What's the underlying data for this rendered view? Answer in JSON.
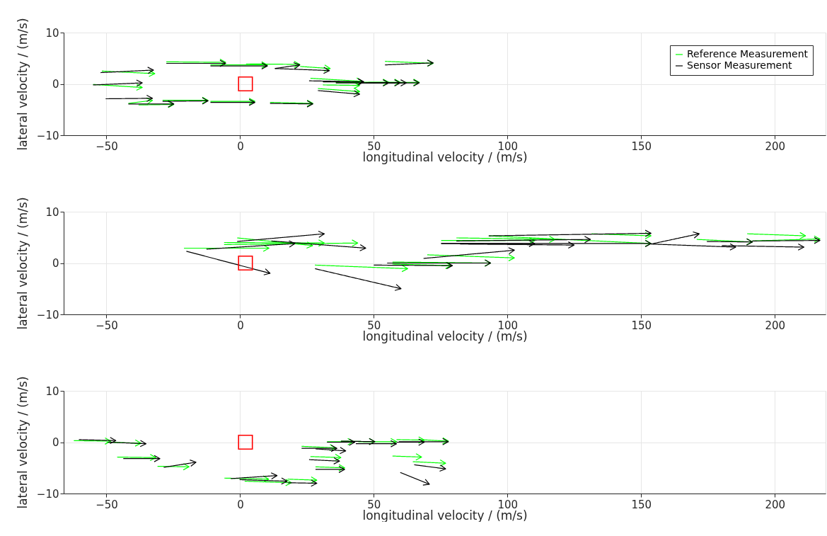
{
  "chart_data": [
    {
      "type": "line",
      "xlabel": "longitudinal velocity / (m/s)",
      "ylabel": "lateral velocity / (m/s)",
      "xlim": [
        -66,
        219
      ],
      "ylim": [
        -10,
        10
      ],
      "xticks": [
        -50,
        0,
        50,
        100,
        150,
        200
      ],
      "yticks": [
        -10,
        0,
        10
      ],
      "grid": true,
      "legend": "top right",
      "series": [
        {
          "name": "Reference Measurement",
          "color": "#00ff00",
          "x": [
            -27.6,
            -5.4,
            null,
            -11.1,
            10.2,
            null,
            2.2,
            22.3,
            null,
            22.5,
            33.7,
            null,
            -51.7,
            -31.9,
            null,
            -55,
            -36.6,
            null,
            -41.8,
            -32.8,
            null,
            -38,
            -24.8,
            null,
            -29,
            -12,
            null,
            -11.1,
            5.5,
            null,
            11.2,
            27.2,
            null,
            26.3,
            45.7,
            null,
            29.1,
            44.7,
            null,
            31,
            44.7,
            null,
            35.8,
            55.6,
            null,
            45.2,
            59.9,
            null,
            48,
            67,
            null,
            54.2,
            72.2
          ],
          "values": [
            4.3,
            4.2,
            null,
            3.7,
            3.7,
            null,
            3.9,
            3.8,
            null,
            3.4,
            3.0,
            null,
            2.5,
            2.0,
            null,
            -0.1,
            -0.7,
            null,
            -3.8,
            -3.2,
            null,
            -4.1,
            -4.0,
            null,
            -3.2,
            -3.2,
            null,
            -3.4,
            -3.4,
            null,
            -3.6,
            -3.8,
            null,
            1.1,
            0.5,
            null,
            -0.9,
            -1.5,
            null,
            -0.2,
            -0.3,
            null,
            0.3,
            0.3,
            null,
            0.3,
            0.3,
            null,
            0.3,
            0.3,
            null,
            4.4,
            4.0
          ]
        },
        {
          "name": "Sensor Measurement",
          "color": "#000000",
          "x": [
            -27.6,
            -5.4,
            null,
            -11.1,
            10.2,
            null,
            13,
            22.3,
            null,
            13,
            33.4,
            null,
            -52.2,
            -32.4,
            null,
            -55,
            -36.6,
            null,
            -50.3,
            -32.8,
            null,
            -41.8,
            -24.8,
            null,
            -29,
            -12,
            null,
            -11.1,
            5.5,
            null,
            11.2,
            27.2,
            null,
            25.8,
            46.2,
            null,
            31,
            46.2,
            null,
            29.1,
            44.7,
            null,
            35.8,
            55.6,
            null,
            45.2,
            59.9,
            null,
            47,
            62.2,
            null,
            48,
            67,
            null,
            54.2,
            72.2
          ],
          "values": [
            4.0,
            4.0,
            null,
            3.5,
            3.5,
            null,
            3.0,
            3.7,
            null,
            3.0,
            2.6,
            null,
            2.2,
            2.7,
            null,
            -0.2,
            0.2,
            null,
            -2.9,
            -2.8,
            null,
            -3.9,
            -3.9,
            null,
            -3.4,
            -3.3,
            null,
            -3.6,
            -3.6,
            null,
            -3.8,
            -3.9,
            null,
            0.6,
            0.4,
            null,
            0.4,
            0.4,
            null,
            -1.3,
            -2.0,
            null,
            0.2,
            0.2,
            null,
            0.2,
            0.2,
            null,
            0.2,
            0.2,
            null,
            0.2,
            0.2,
            null,
            3.7,
            4.1
          ]
        },
        {
          "type": "scatter",
          "marker": "square",
          "color": "#ff0000",
          "x": [
            2
          ],
          "values": [
            0
          ]
        }
      ]
    },
    {
      "type": "line",
      "xlabel": "longitudinal velocity / (m/s)",
      "ylabel": "lateral velocity / (m/s)",
      "xlim": [
        -66,
        219
      ],
      "ylim": [
        -10,
        10
      ],
      "xticks": [
        -50,
        0,
        50,
        100,
        150,
        200
      ],
      "yticks": [
        -10,
        0,
        10
      ],
      "grid": true,
      "series": [
        {
          "color": "#00ff00",
          "x": [
            -21,
            10.8,
            null,
            -6,
            31.5,
            null,
            -1.1,
            27.1,
            null,
            -6,
            44,
            null,
            28,
            62.7,
            null,
            57,
            79.0,
            null,
            57,
            93.7,
            null,
            70,
            102.6,
            null,
            75.2,
            110.2,
            null,
            80.9,
            117.8,
            null,
            93,
            153.7,
            null,
            131.5,
            153.7,
            null,
            170.8,
            191.6,
            null,
            189.7,
            211.5,
            null,
            191.6,
            216.9
          ],
          "values": [
            2.9,
            2.9,
            null,
            4.0,
            3.9,
            null,
            4.9,
            3.4,
            null,
            3.6,
            3.9,
            null,
            -0.4,
            -1.1,
            null,
            -0.2,
            -0.5,
            null,
            0.2,
            0,
            null,
            1.6,
            1.0,
            null,
            4.4,
            4.4,
            null,
            4.9,
            4.6,
            null,
            5.3,
            3.8,
            null,
            5.7,
            5.3,
            null,
            4.6,
            4.1,
            null,
            5.7,
            5.3,
            null,
            4.3,
            4.7
          ]
        },
        {
          "color": "#000000",
          "x": [
            -20.1,
            11.2,
            null,
            -12.6,
            20.5,
            null,
            -1.1,
            31.5,
            null,
            11.7,
            47,
            null,
            28,
            60.2,
            null,
            50,
            79.4,
            null,
            55,
            93.7,
            null,
            68.6,
            102.6,
            null,
            75.2,
            110.2,
            null,
            82.3,
            124.9,
            null,
            80.9,
            131,
            null,
            93,
            153.7,
            null,
            75.2,
            153.7,
            null,
            153.7,
            171.7,
            null,
            153.7,
            185.4,
            null,
            174.6,
            191.6,
            null,
            180.2,
            210.9,
            null,
            191.6,
            216.9
          ],
          "values": [
            2.3,
            -2.0,
            null,
            2.7,
            3.8,
            null,
            4.2,
            5.7,
            null,
            4.3,
            2.9,
            null,
            -1.1,
            -5.0,
            null,
            -0.4,
            -0.5,
            null,
            0,
            0,
            null,
            0.9,
            2.5,
            null,
            3.8,
            3.8,
            null,
            3.7,
            3.5,
            null,
            4.3,
            4.6,
            null,
            5.3,
            5.8,
            null,
            3.8,
            3.8,
            null,
            3.7,
            5.7,
            null,
            3.7,
            3.1,
            null,
            4.2,
            4.1,
            null,
            3.4,
            3.1,
            null,
            4.3,
            4.4
          ]
        },
        {
          "type": "scatter",
          "marker": "square",
          "color": "#ff0000",
          "x": [
            2
          ],
          "values": [
            0
          ]
        }
      ]
    },
    {
      "type": "line",
      "xlabel": "longitudinal velocity / (m/s)",
      "ylabel": "lateral velocity / (m/s)",
      "xlim": [
        -66,
        219
      ],
      "ylim": [
        -10,
        10
      ],
      "xticks": [
        -50,
        0,
        50,
        100,
        150,
        200
      ],
      "yticks": [
        -10,
        0,
        10
      ],
      "grid": true,
      "series": [
        {
          "color": "#00ff00",
          "x": [
            -62.2,
            -48.4,
            null,
            -49.9,
            -37.1,
            null,
            -46,
            -31.5,
            null,
            -30.9,
            -19.1,
            null,
            -5.9,
            10.7,
            null,
            1.7,
            19.2,
            null,
            17.8,
            28.7,
            null,
            23,
            35.7,
            null,
            26.3,
            37.7,
            null,
            28.2,
            39.1,
            null,
            32.5,
            42.4,
            null,
            37.7,
            50.4,
            null,
            44.2,
            58.5,
            null,
            58.5,
            68.9,
            null,
            67,
            77.9,
            null,
            57,
            67.9,
            null,
            64.6,
            76.9
          ],
          "values": [
            0.3,
            0.2,
            null,
            0,
            -0.2,
            null,
            -2.9,
            -3.0,
            null,
            -4.7,
            -4.8,
            null,
            -7.0,
            -7.2,
            null,
            -7.6,
            -7.9,
            null,
            -7.2,
            -7.4,
            null,
            -0.8,
            -1.1,
            null,
            -2.8,
            -3.0,
            null,
            -4.8,
            -5.0,
            null,
            0.1,
            0.1,
            null,
            0.2,
            0.1,
            null,
            0.1,
            0.1,
            null,
            0.5,
            0.4,
            null,
            0.5,
            0.2,
            null,
            -2.7,
            -2.9,
            null,
            -3.8,
            -4.1
          ]
        },
        {
          "color": "#000000",
          "x": [
            -60.3,
            -46.5,
            null,
            -49.4,
            -35.2,
            null,
            -43.7,
            -30,
            null,
            -28.6,
            -16.5,
            null,
            -3.5,
            13.8,
            null,
            -0.2,
            17.6,
            null,
            17.8,
            28.7,
            null,
            23,
            36.2,
            null,
            28.2,
            39.5,
            null,
            25.8,
            37.2,
            null,
            28.2,
            39.1,
            null,
            32.5,
            42.9,
            null,
            37.7,
            50.4,
            null,
            43.3,
            58.5,
            null,
            58.5,
            68.9,
            null,
            59.4,
            77.9,
            null,
            65.1,
            76.9,
            null,
            59.9,
            70.8
          ],
          "values": [
            0.5,
            0.3,
            null,
            0,
            -0.3,
            null,
            -3.2,
            -3.2,
            null,
            -4.9,
            -3.9,
            null,
            -7.1,
            -6.5,
            null,
            -7.3,
            -7.6,
            null,
            -7.9,
            -8.0,
            null,
            -1.2,
            -1.2,
            null,
            -1.3,
            -1.7,
            null,
            -3.4,
            -3.7,
            null,
            -5.3,
            -5.3,
            null,
            0,
            0,
            null,
            0.2,
            0.1,
            null,
            -0.3,
            -0.3,
            null,
            0,
            0,
            null,
            0.1,
            0.1,
            null,
            -4.4,
            -5.2,
            null,
            -5.9,
            -8.2
          ]
        },
        {
          "type": "scatter",
          "marker": "square",
          "color": "#ff0000",
          "x": [
            2
          ],
          "values": [
            0
          ]
        }
      ]
    }
  ]
}
